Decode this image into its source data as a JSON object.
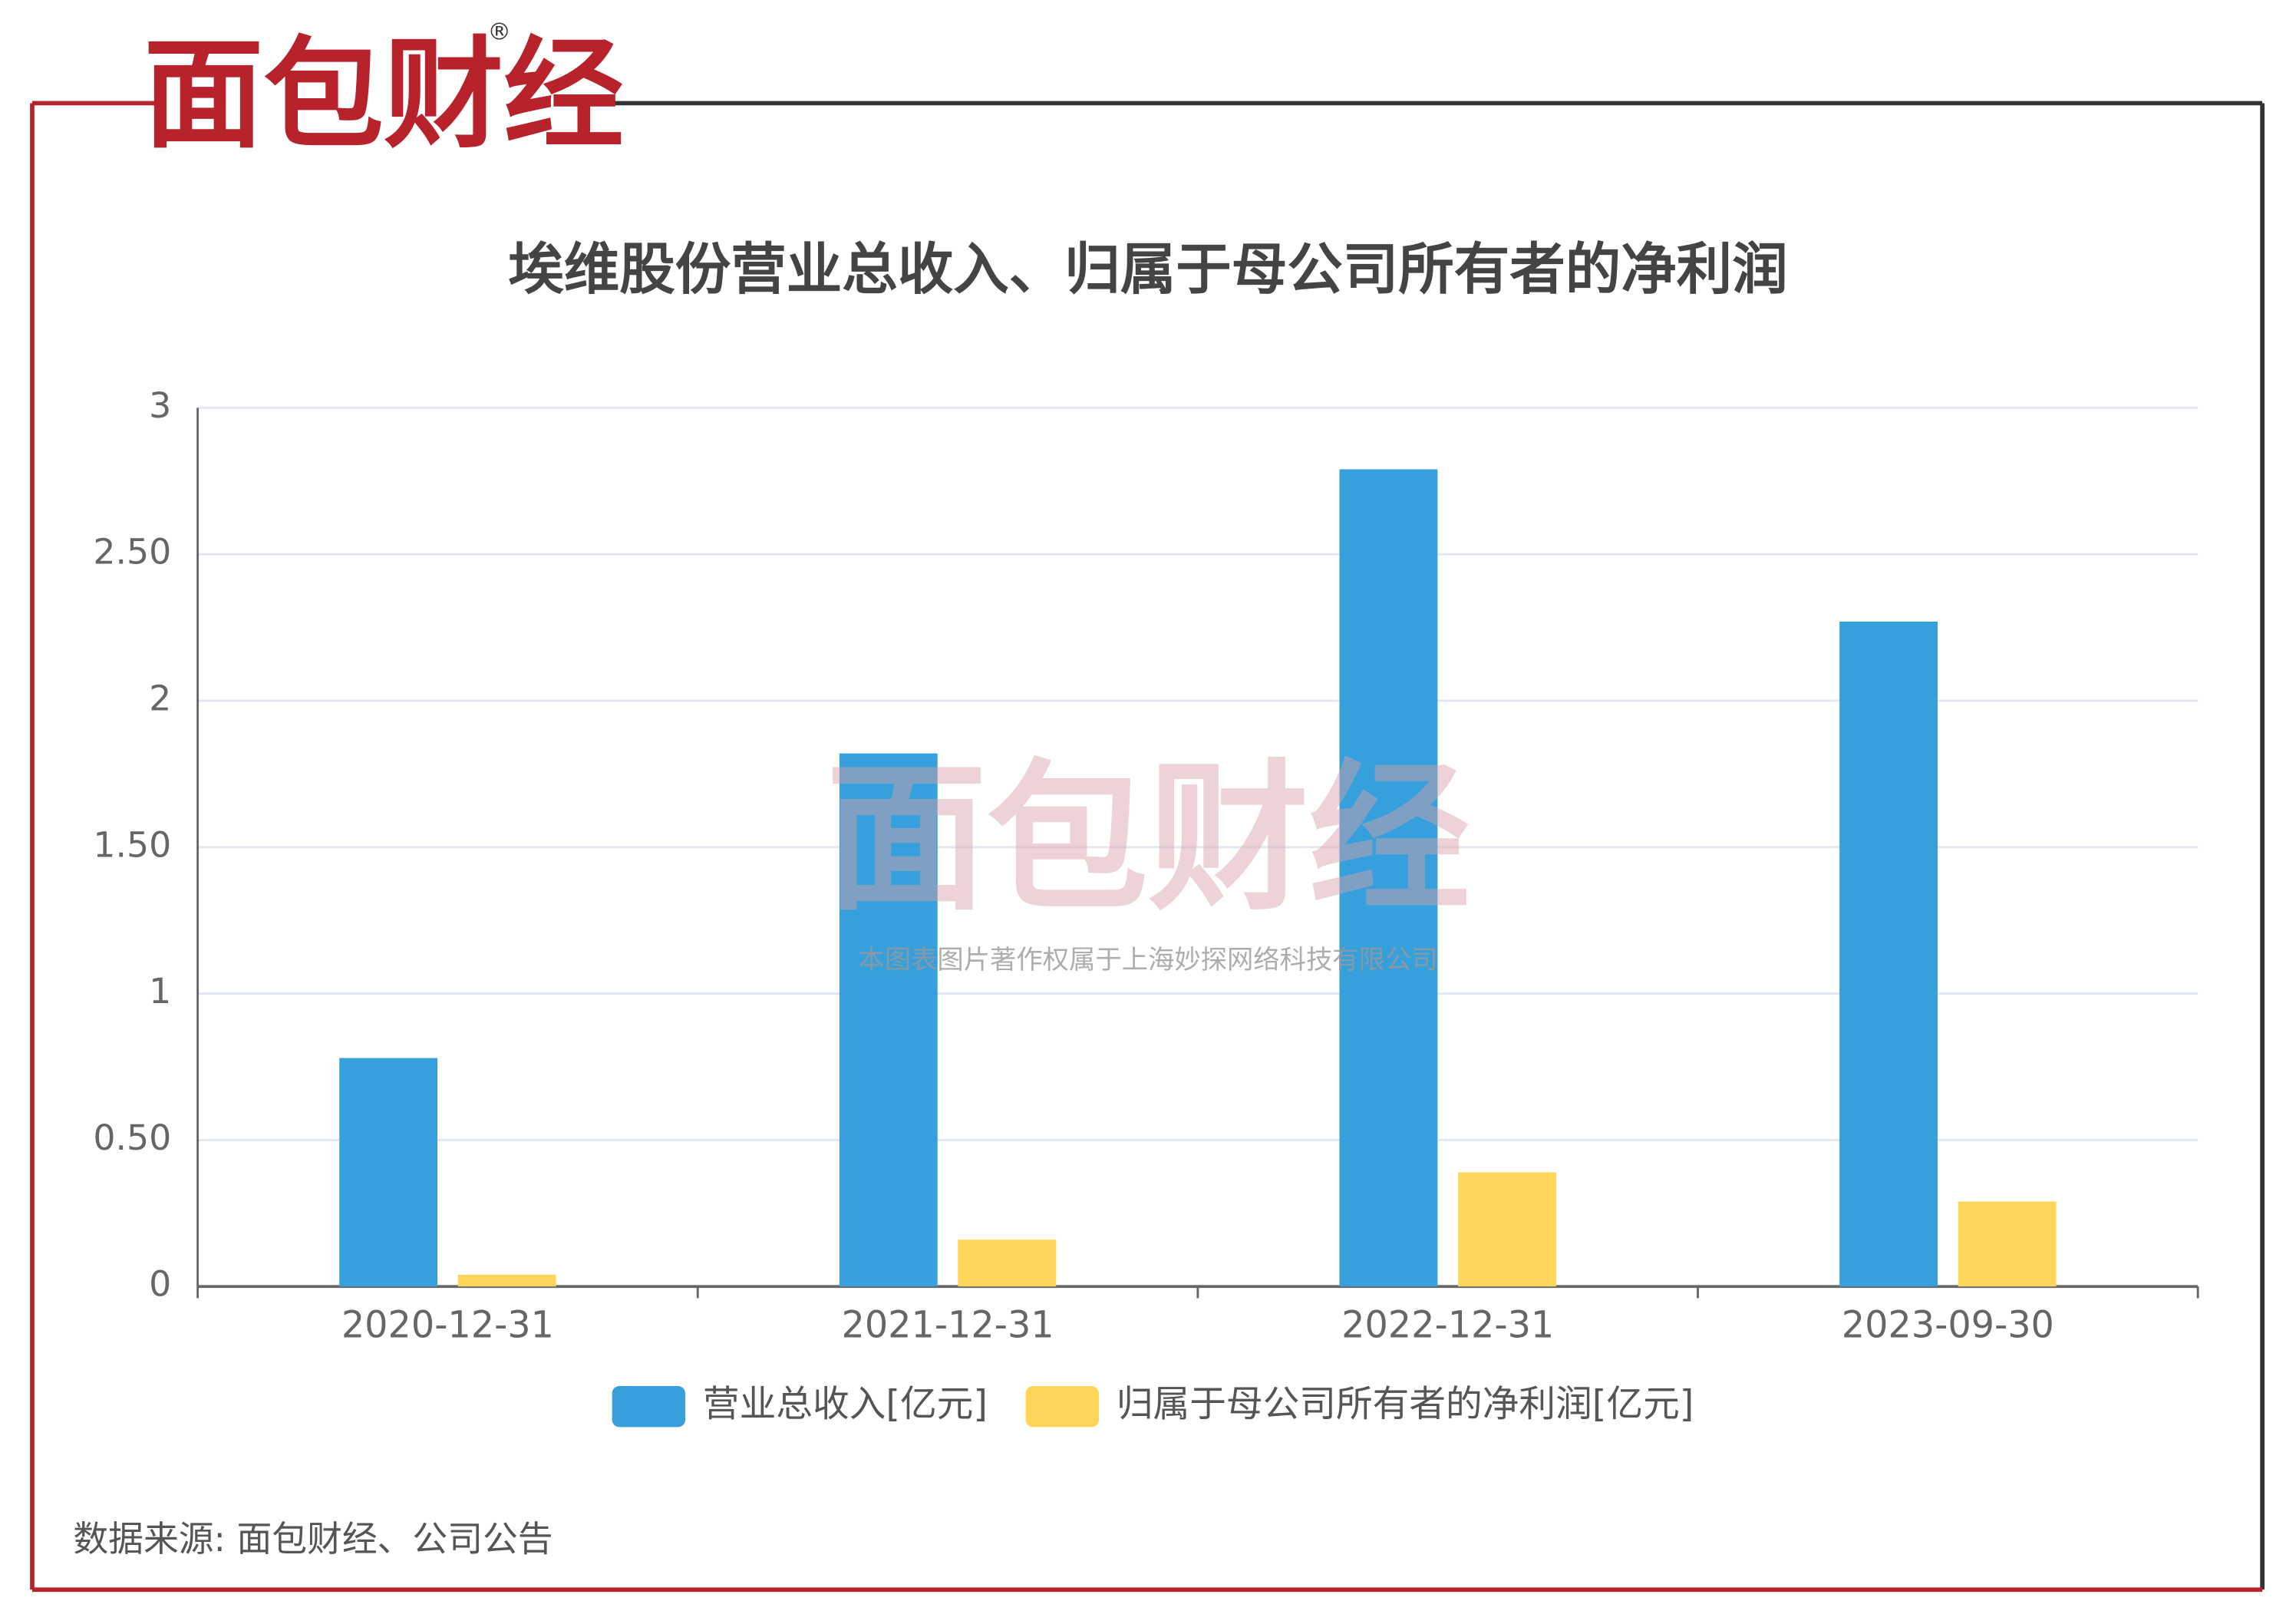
{
  "logo": "面包财经",
  "logo_mark": "®",
  "watermark": "本图表图片著作权属于上海妙探网络科技有限公司",
  "source": "数据来源: 面包财经、公司公告",
  "chart_data": {
    "type": "bar",
    "title": "埃维股份营业总收入、归属于母公司所有者的净利润",
    "categories": [
      "2020-12-31",
      "2021-12-31",
      "2022-12-31",
      "2023-09-30"
    ],
    "series": [
      {
        "name": "营业总收入[亿元]",
        "color": "#35a0db",
        "values": [
          0.78,
          1.82,
          2.79,
          2.27
        ]
      },
      {
        "name": "归属于母公司所有者的净利润[亿元]",
        "color": "#fdd558",
        "values": [
          0.04,
          0.16,
          0.39,
          0.29
        ]
      }
    ],
    "ylim": [
      0,
      3
    ],
    "yticks": [
      0,
      {
        "value": 0.5,
        "label": "0.50"
      },
      1,
      {
        "value": 1.5,
        "label": "1.50"
      },
      2,
      {
        "value": 2.5,
        "label": "2.50"
      },
      3
    ],
    "grid": true,
    "legend": "bottom"
  }
}
